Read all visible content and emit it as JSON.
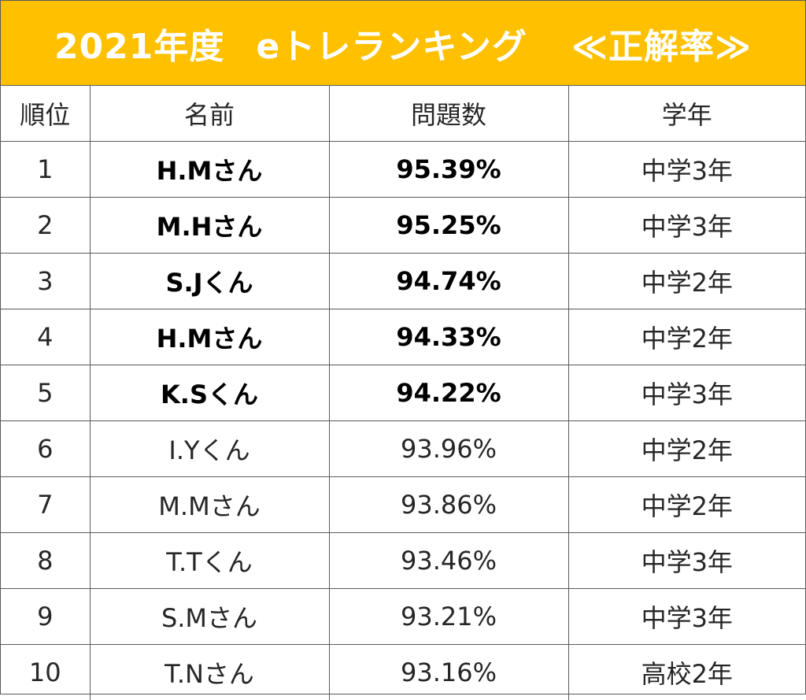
{
  "title": {
    "year": "2021年度",
    "name": "eトレランキング",
    "category": "≪正解率≫"
  },
  "headers": {
    "rank": "順位",
    "name": "名前",
    "score": "問題数",
    "grade": "学年"
  },
  "rows": [
    {
      "rank": "1",
      "name": "H.Mさん",
      "score": "95.39%",
      "grade": "中学3年",
      "bold": true
    },
    {
      "rank": "2",
      "name": "M.Hさん",
      "score": "95.25%",
      "grade": "中学3年",
      "bold": true
    },
    {
      "rank": "3",
      "name": "S.Jくん",
      "score": "94.74%",
      "grade": "中学2年",
      "bold": true
    },
    {
      "rank": "4",
      "name": "H.Mさん",
      "score": "94.33%",
      "grade": "中学2年",
      "bold": true
    },
    {
      "rank": "5",
      "name": "K.Sくん",
      "score": "94.22%",
      "grade": "中学3年",
      "bold": true
    },
    {
      "rank": "6",
      "name": "I.Yくん",
      "score": "93.96%",
      "grade": "中学2年",
      "bold": false
    },
    {
      "rank": "7",
      "name": "M.Mさん",
      "score": "93.86%",
      "grade": "中学2年",
      "bold": false
    },
    {
      "rank": "8",
      "name": "T.Tくん",
      "score": "93.46%",
      "grade": "中学3年",
      "bold": false
    },
    {
      "rank": "9",
      "name": "S.Mさん",
      "score": "93.21%",
      "grade": "中学3年",
      "bold": false
    },
    {
      "rank": "10",
      "name": "T.Nさん",
      "score": "93.16%",
      "grade": "高校2年",
      "bold": false
    }
  ],
  "colors": {
    "banner_background": "#ffc000",
    "banner_text": "#ffffff",
    "grid_line": "#5a5a5a"
  }
}
